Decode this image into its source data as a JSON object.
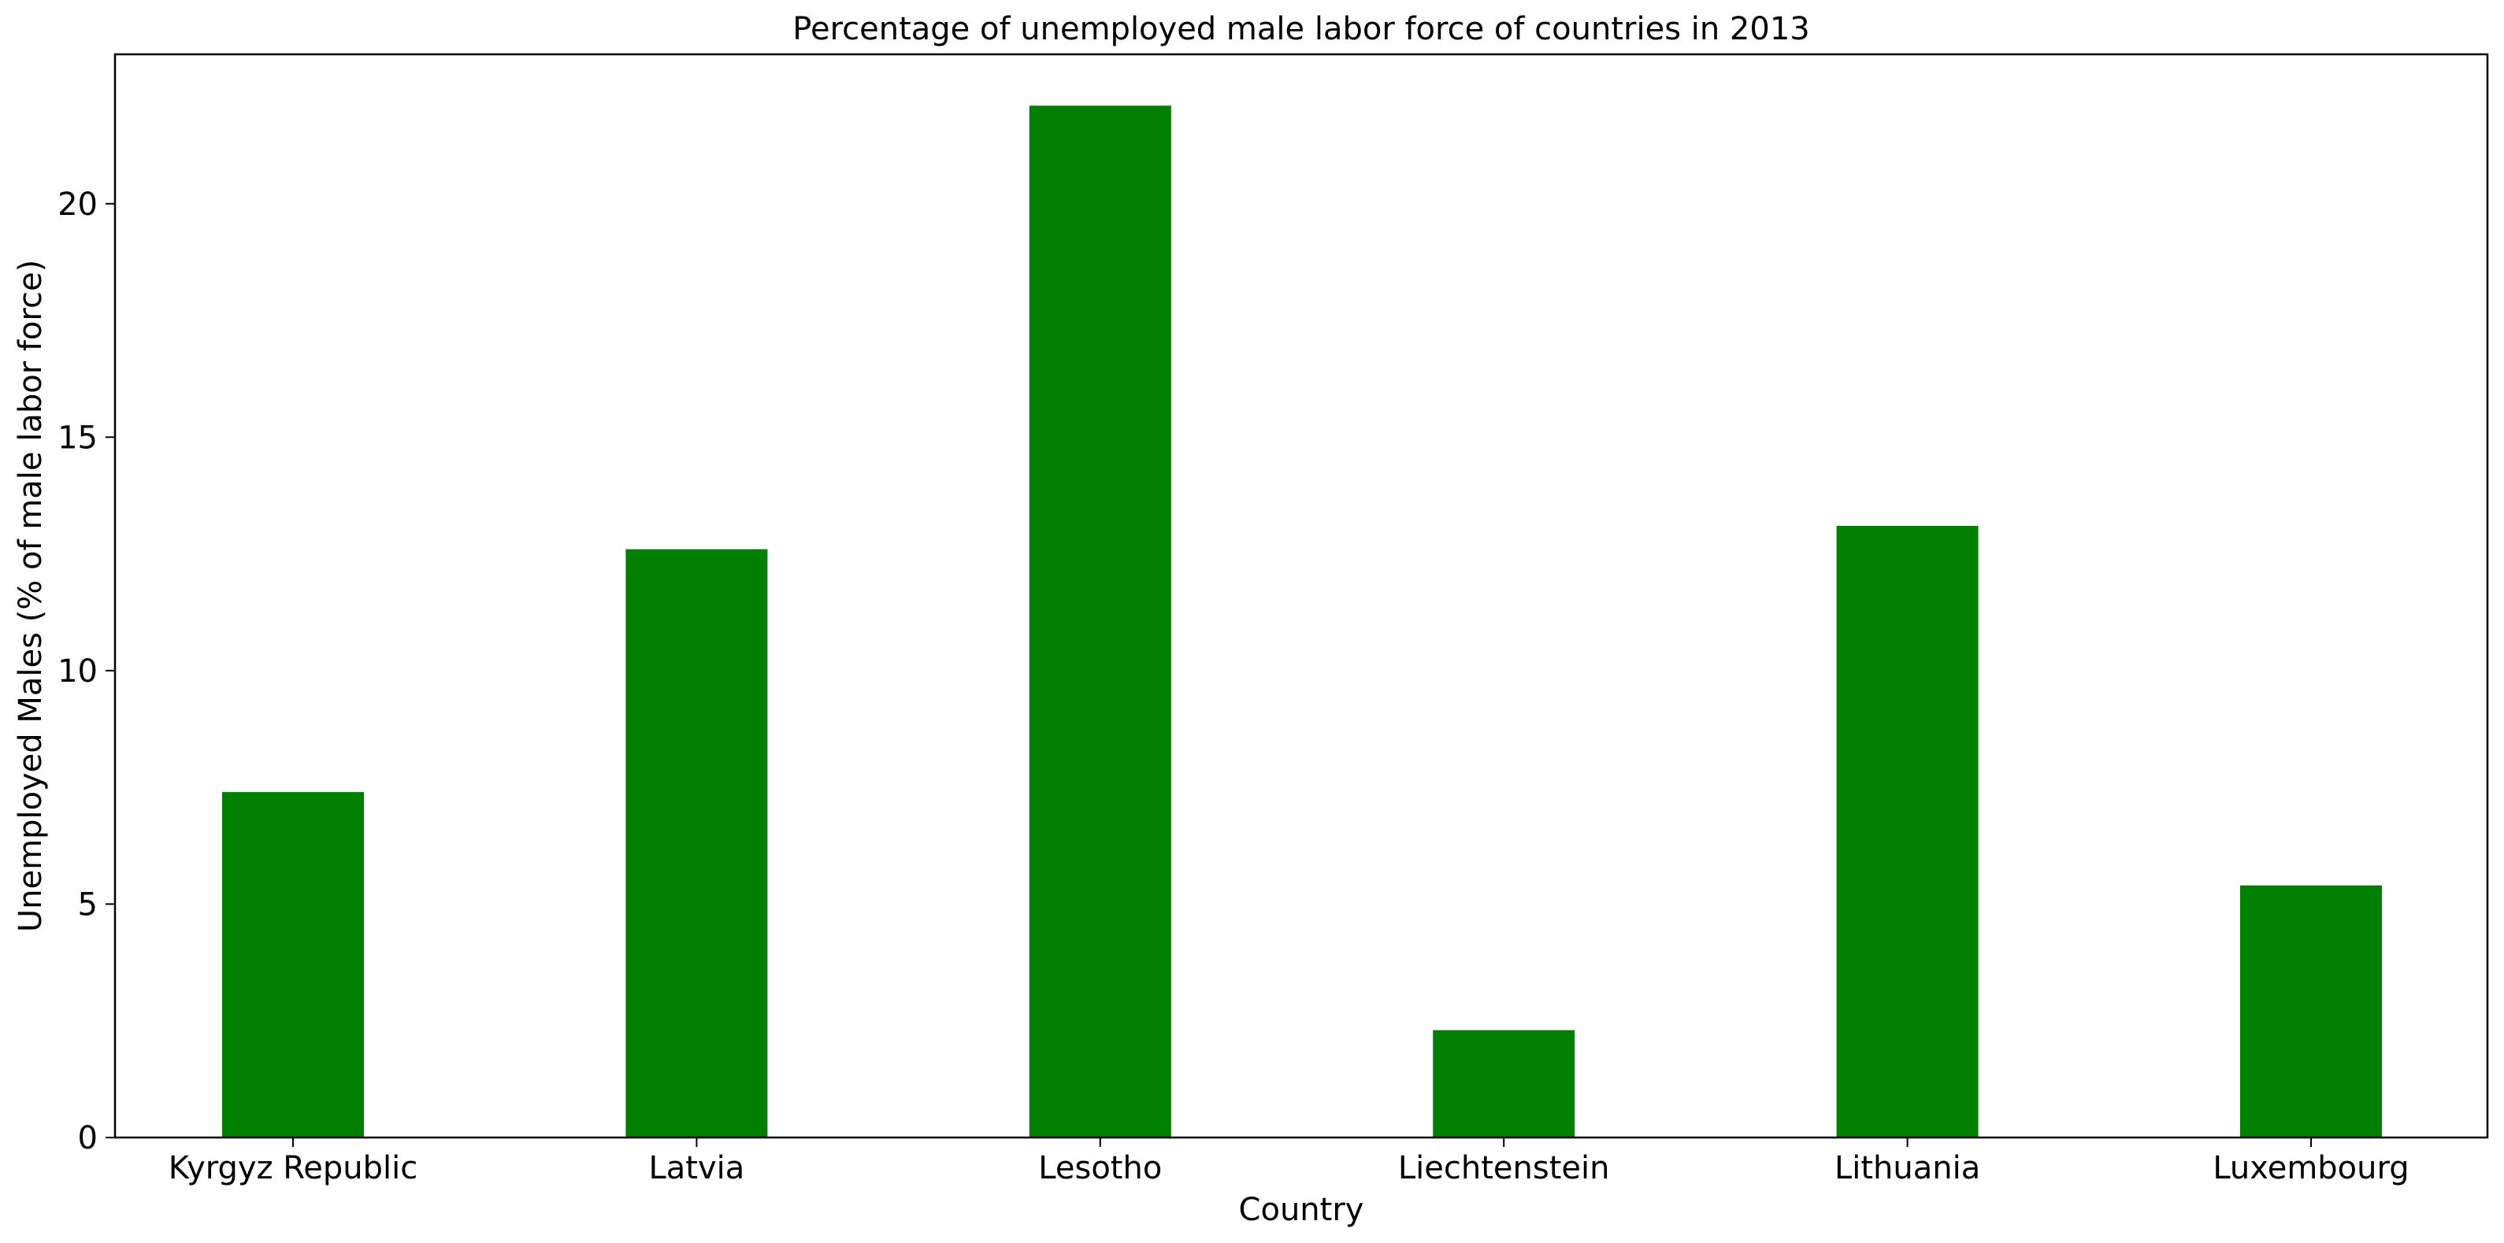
{
  "chart_data": {
    "type": "bar",
    "title": "Percentage of unemployed male labor force of countries in 2013",
    "xlabel": "Country",
    "ylabel": "Unemployed Males (% of male labor force)",
    "categories": [
      "Kyrgyz Republic",
      "Latvia",
      "Lesotho",
      "Liechtenstein",
      "Lithuania",
      "Luxembourg"
    ],
    "values": [
      7.4,
      12.6,
      22.1,
      2.3,
      13.1,
      5.4
    ],
    "ylim": [
      0,
      23.2
    ],
    "yticks": [
      0,
      5,
      10,
      15,
      20
    ],
    "bar_color": "#008000",
    "grid": false,
    "legend": false
  }
}
